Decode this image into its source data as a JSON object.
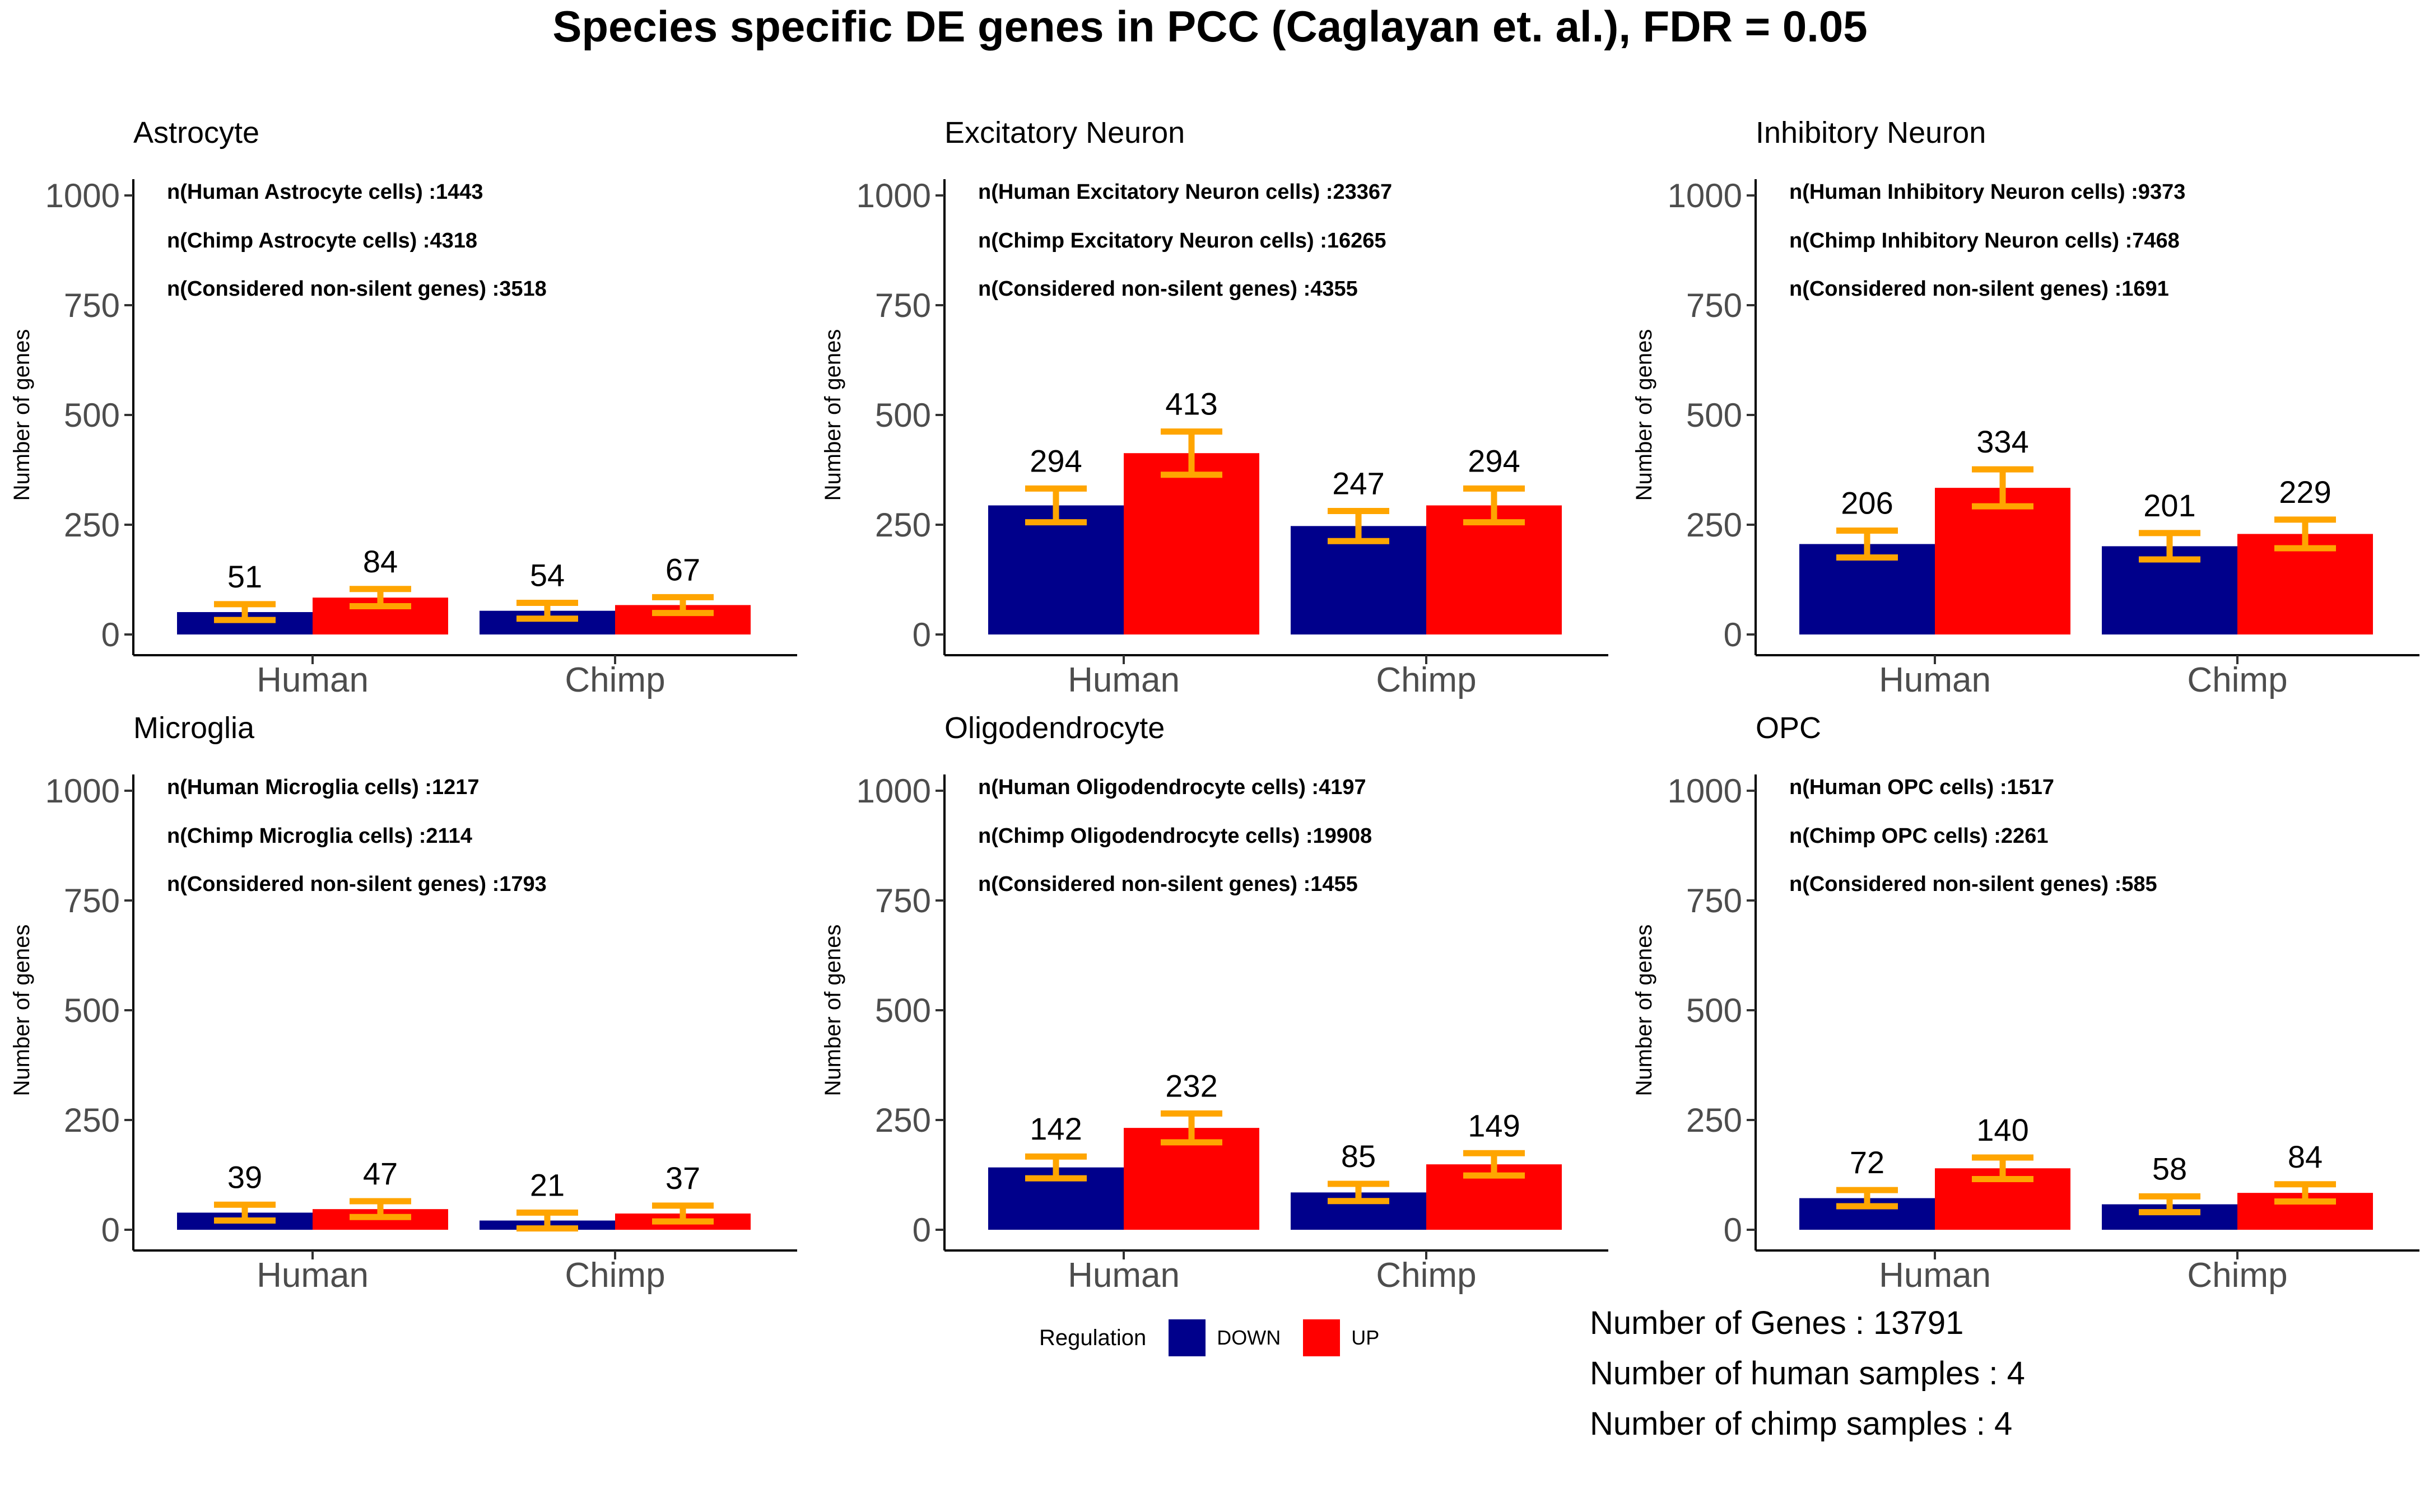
{
  "title": "Species specific DE genes in PCC (Caglayan et. al.), FDR = 0.05",
  "colors": {
    "DOWN": "#00008b",
    "UP": "#ff0000",
    "error_bar": "#ffa500"
  },
  "legend": {
    "title": "Regulation",
    "items": [
      "DOWN",
      "UP"
    ]
  },
  "notes": [
    "Number of Genes : 13791",
    "Number of human samples : 4",
    "Number of chimp samples : 4"
  ],
  "chart_data": [
    {
      "type": "bar",
      "title": "Astrocyte",
      "categories": [
        "Human",
        "Chimp"
      ],
      "series": [
        {
          "name": "DOWN",
          "values": [
            51,
            54
          ]
        },
        {
          "name": "UP",
          "values": [
            84,
            67
          ]
        }
      ],
      "annotations": [
        "n(Human Astrocyte cells) :1443",
        "n(Chimp Astrocyte cells)  :4318",
        "n(Considered non-silent genes) :3518"
      ],
      "ylabel": "Number of genes",
      "yticks": [
        0,
        250,
        500,
        750,
        1000
      ],
      "ylim": [
        0,
        1000
      ],
      "grid": false
    },
    {
      "type": "bar",
      "title": "Excitatory Neuron",
      "categories": [
        "Human",
        "Chimp"
      ],
      "series": [
        {
          "name": "DOWN",
          "values": [
            294,
            247
          ]
        },
        {
          "name": "UP",
          "values": [
            413,
            294
          ]
        }
      ],
      "annotations": [
        "n(Human Excitatory Neuron cells) :23367",
        "n(Chimp Excitatory Neuron cells)  :16265",
        "n(Considered non-silent genes) :4355"
      ],
      "ylabel": "Number of genes",
      "yticks": [
        0,
        250,
        500,
        750,
        1000
      ],
      "ylim": [
        0,
        1000
      ],
      "grid": false
    },
    {
      "type": "bar",
      "title": "Inhibitory Neuron",
      "categories": [
        "Human",
        "Chimp"
      ],
      "series": [
        {
          "name": "DOWN",
          "values": [
            206,
            201
          ]
        },
        {
          "name": "UP",
          "values": [
            334,
            229
          ]
        }
      ],
      "annotations": [
        "n(Human Inhibitory Neuron cells) :9373",
        "n(Chimp Inhibitory Neuron cells)  :7468",
        "n(Considered non-silent genes) :1691"
      ],
      "ylabel": "Number of genes",
      "yticks": [
        0,
        250,
        500,
        750,
        1000
      ],
      "ylim": [
        0,
        1000
      ],
      "grid": false
    },
    {
      "type": "bar",
      "title": "Microglia",
      "categories": [
        "Human",
        "Chimp"
      ],
      "series": [
        {
          "name": "DOWN",
          "values": [
            39,
            21
          ]
        },
        {
          "name": "UP",
          "values": [
            47,
            37
          ]
        }
      ],
      "annotations": [
        "n(Human Microglia cells) :1217",
        "n(Chimp Microglia cells)  :2114",
        "n(Considered non-silent genes) :1793"
      ],
      "ylabel": "Number of genes",
      "yticks": [
        0,
        250,
        500,
        750,
        1000
      ],
      "ylim": [
        0,
        1000
      ],
      "grid": false
    },
    {
      "type": "bar",
      "title": "Oligodendrocyte",
      "categories": [
        "Human",
        "Chimp"
      ],
      "series": [
        {
          "name": "DOWN",
          "values": [
            142,
            85
          ]
        },
        {
          "name": "UP",
          "values": [
            232,
            149
          ]
        }
      ],
      "annotations": [
        "n(Human Oligodendrocyte cells) :4197",
        "n(Chimp Oligodendrocyte cells)  :19908",
        "n(Considered non-silent genes) :1455"
      ],
      "ylabel": "Number of genes",
      "yticks": [
        0,
        250,
        500,
        750,
        1000
      ],
      "ylim": [
        0,
        1000
      ],
      "grid": false
    },
    {
      "type": "bar",
      "title": "OPC",
      "categories": [
        "Human",
        "Chimp"
      ],
      "series": [
        {
          "name": "DOWN",
          "values": [
            72,
            58
          ]
        },
        {
          "name": "UP",
          "values": [
            140,
            84
          ]
        }
      ],
      "annotations": [
        "n(Human OPC cells) :1517",
        "n(Chimp OPC cells)  :2261",
        "n(Considered non-silent genes) :585"
      ],
      "ylabel": "Number of genes",
      "yticks": [
        0,
        250,
        500,
        750,
        1000
      ],
      "ylim": [
        0,
        1000
      ],
      "grid": false
    }
  ]
}
